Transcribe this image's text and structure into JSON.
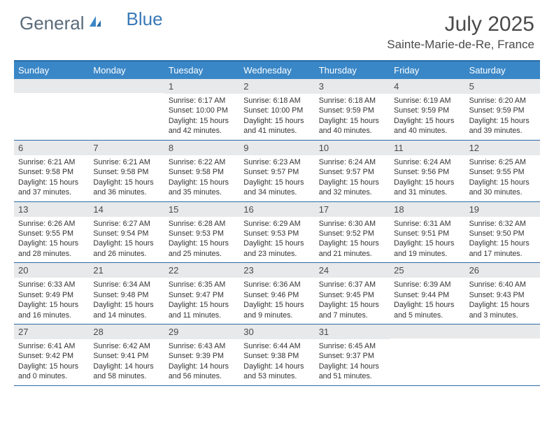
{
  "logo": {
    "part1": "General",
    "part2": "Blue"
  },
  "title": "July 2025",
  "location": "Sainte-Marie-de-Re, France",
  "colors": {
    "header_bar": "#3a87c7",
    "border": "#2a6aa8",
    "daynum_bg": "#e8e9ea",
    "text": "#333333",
    "logo_gray": "#5a6b7a",
    "logo_blue": "#3a7ab8"
  },
  "weekdays": [
    "Sunday",
    "Monday",
    "Tuesday",
    "Wednesday",
    "Thursday",
    "Friday",
    "Saturday"
  ],
  "weeks": [
    [
      {
        "n": "",
        "lines": []
      },
      {
        "n": "",
        "lines": []
      },
      {
        "n": "1",
        "lines": [
          "Sunrise: 6:17 AM",
          "Sunset: 10:00 PM",
          "Daylight: 15 hours",
          "and 42 minutes."
        ]
      },
      {
        "n": "2",
        "lines": [
          "Sunrise: 6:18 AM",
          "Sunset: 10:00 PM",
          "Daylight: 15 hours",
          "and 41 minutes."
        ]
      },
      {
        "n": "3",
        "lines": [
          "Sunrise: 6:18 AM",
          "Sunset: 9:59 PM",
          "Daylight: 15 hours",
          "and 40 minutes."
        ]
      },
      {
        "n": "4",
        "lines": [
          "Sunrise: 6:19 AM",
          "Sunset: 9:59 PM",
          "Daylight: 15 hours",
          "and 40 minutes."
        ]
      },
      {
        "n": "5",
        "lines": [
          "Sunrise: 6:20 AM",
          "Sunset: 9:59 PM",
          "Daylight: 15 hours",
          "and 39 minutes."
        ]
      }
    ],
    [
      {
        "n": "6",
        "lines": [
          "Sunrise: 6:21 AM",
          "Sunset: 9:58 PM",
          "Daylight: 15 hours",
          "and 37 minutes."
        ]
      },
      {
        "n": "7",
        "lines": [
          "Sunrise: 6:21 AM",
          "Sunset: 9:58 PM",
          "Daylight: 15 hours",
          "and 36 minutes."
        ]
      },
      {
        "n": "8",
        "lines": [
          "Sunrise: 6:22 AM",
          "Sunset: 9:58 PM",
          "Daylight: 15 hours",
          "and 35 minutes."
        ]
      },
      {
        "n": "9",
        "lines": [
          "Sunrise: 6:23 AM",
          "Sunset: 9:57 PM",
          "Daylight: 15 hours",
          "and 34 minutes."
        ]
      },
      {
        "n": "10",
        "lines": [
          "Sunrise: 6:24 AM",
          "Sunset: 9:57 PM",
          "Daylight: 15 hours",
          "and 32 minutes."
        ]
      },
      {
        "n": "11",
        "lines": [
          "Sunrise: 6:24 AM",
          "Sunset: 9:56 PM",
          "Daylight: 15 hours",
          "and 31 minutes."
        ]
      },
      {
        "n": "12",
        "lines": [
          "Sunrise: 6:25 AM",
          "Sunset: 9:55 PM",
          "Daylight: 15 hours",
          "and 30 minutes."
        ]
      }
    ],
    [
      {
        "n": "13",
        "lines": [
          "Sunrise: 6:26 AM",
          "Sunset: 9:55 PM",
          "Daylight: 15 hours",
          "and 28 minutes."
        ]
      },
      {
        "n": "14",
        "lines": [
          "Sunrise: 6:27 AM",
          "Sunset: 9:54 PM",
          "Daylight: 15 hours",
          "and 26 minutes."
        ]
      },
      {
        "n": "15",
        "lines": [
          "Sunrise: 6:28 AM",
          "Sunset: 9:53 PM",
          "Daylight: 15 hours",
          "and 25 minutes."
        ]
      },
      {
        "n": "16",
        "lines": [
          "Sunrise: 6:29 AM",
          "Sunset: 9:53 PM",
          "Daylight: 15 hours",
          "and 23 minutes."
        ]
      },
      {
        "n": "17",
        "lines": [
          "Sunrise: 6:30 AM",
          "Sunset: 9:52 PM",
          "Daylight: 15 hours",
          "and 21 minutes."
        ]
      },
      {
        "n": "18",
        "lines": [
          "Sunrise: 6:31 AM",
          "Sunset: 9:51 PM",
          "Daylight: 15 hours",
          "and 19 minutes."
        ]
      },
      {
        "n": "19",
        "lines": [
          "Sunrise: 6:32 AM",
          "Sunset: 9:50 PM",
          "Daylight: 15 hours",
          "and 17 minutes."
        ]
      }
    ],
    [
      {
        "n": "20",
        "lines": [
          "Sunrise: 6:33 AM",
          "Sunset: 9:49 PM",
          "Daylight: 15 hours",
          "and 16 minutes."
        ]
      },
      {
        "n": "21",
        "lines": [
          "Sunrise: 6:34 AM",
          "Sunset: 9:48 PM",
          "Daylight: 15 hours",
          "and 14 minutes."
        ]
      },
      {
        "n": "22",
        "lines": [
          "Sunrise: 6:35 AM",
          "Sunset: 9:47 PM",
          "Daylight: 15 hours",
          "and 11 minutes."
        ]
      },
      {
        "n": "23",
        "lines": [
          "Sunrise: 6:36 AM",
          "Sunset: 9:46 PM",
          "Daylight: 15 hours",
          "and 9 minutes."
        ]
      },
      {
        "n": "24",
        "lines": [
          "Sunrise: 6:37 AM",
          "Sunset: 9:45 PM",
          "Daylight: 15 hours",
          "and 7 minutes."
        ]
      },
      {
        "n": "25",
        "lines": [
          "Sunrise: 6:39 AM",
          "Sunset: 9:44 PM",
          "Daylight: 15 hours",
          "and 5 minutes."
        ]
      },
      {
        "n": "26",
        "lines": [
          "Sunrise: 6:40 AM",
          "Sunset: 9:43 PM",
          "Daylight: 15 hours",
          "and 3 minutes."
        ]
      }
    ],
    [
      {
        "n": "27",
        "lines": [
          "Sunrise: 6:41 AM",
          "Sunset: 9:42 PM",
          "Daylight: 15 hours",
          "and 0 minutes."
        ]
      },
      {
        "n": "28",
        "lines": [
          "Sunrise: 6:42 AM",
          "Sunset: 9:41 PM",
          "Daylight: 14 hours",
          "and 58 minutes."
        ]
      },
      {
        "n": "29",
        "lines": [
          "Sunrise: 6:43 AM",
          "Sunset: 9:39 PM",
          "Daylight: 14 hours",
          "and 56 minutes."
        ]
      },
      {
        "n": "30",
        "lines": [
          "Sunrise: 6:44 AM",
          "Sunset: 9:38 PM",
          "Daylight: 14 hours",
          "and 53 minutes."
        ]
      },
      {
        "n": "31",
        "lines": [
          "Sunrise: 6:45 AM",
          "Sunset: 9:37 PM",
          "Daylight: 14 hours",
          "and 51 minutes."
        ]
      },
      {
        "n": "",
        "lines": []
      },
      {
        "n": "",
        "lines": []
      }
    ]
  ]
}
